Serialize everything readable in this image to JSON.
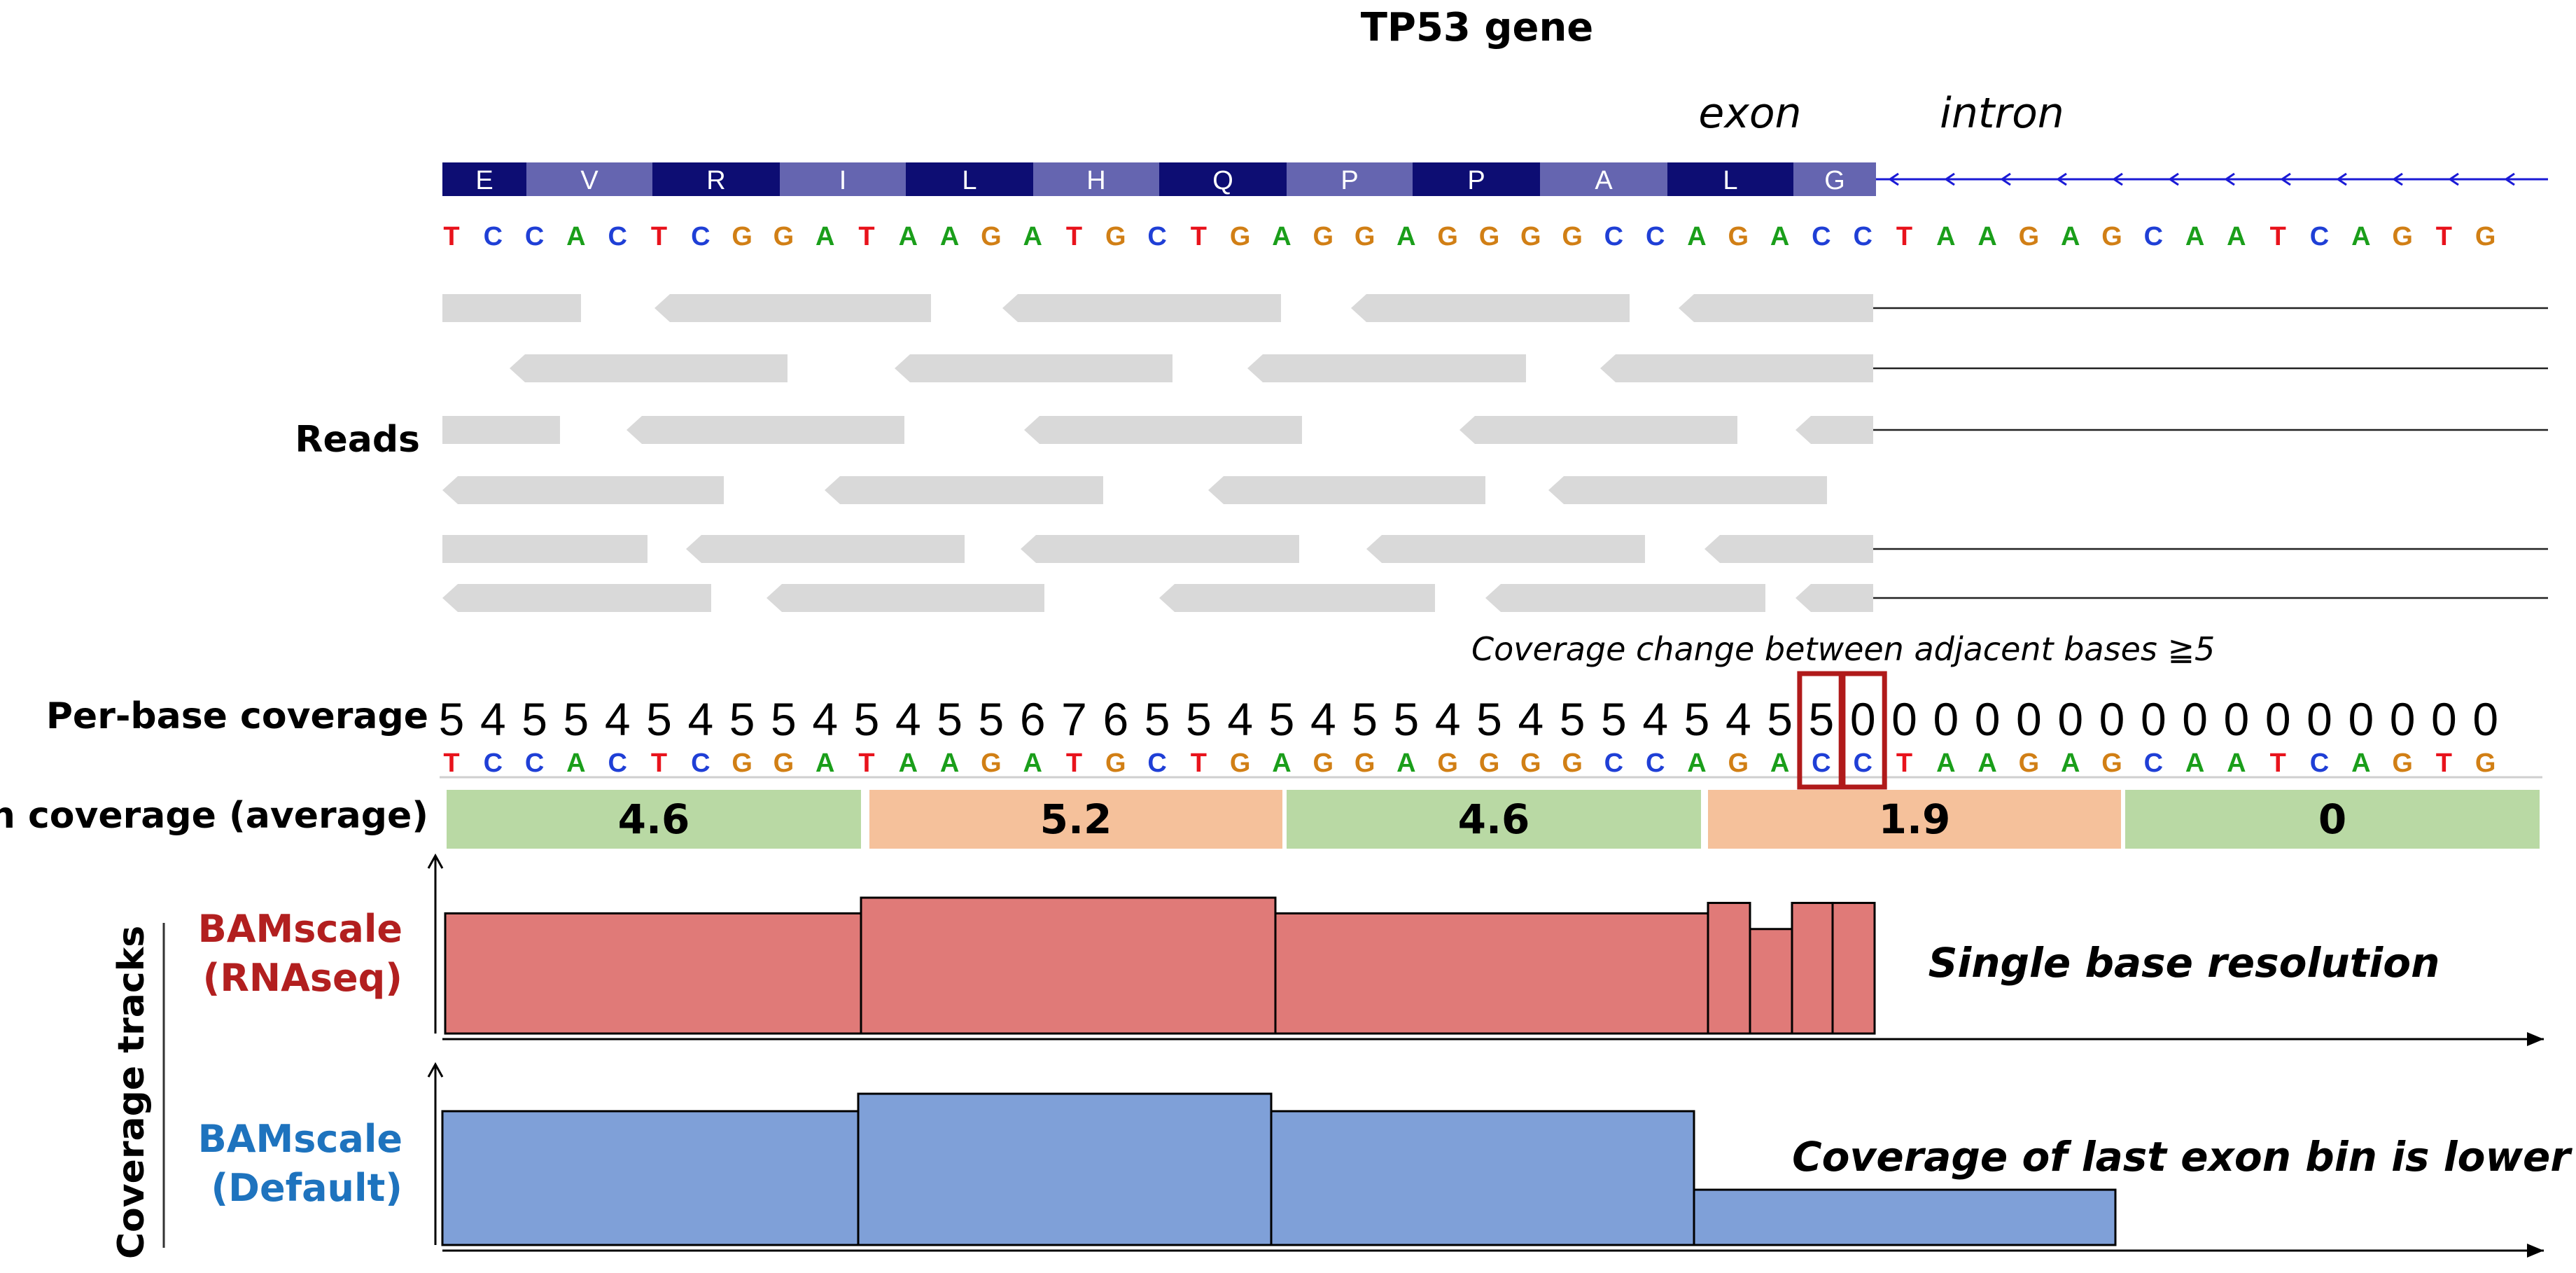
{
  "title": "TP53 gene",
  "region_labels": {
    "exon": "exon",
    "intron": "intron"
  },
  "amino_acids": [
    "E",
    "V",
    "R",
    "I",
    "L",
    "H",
    "Q",
    "P",
    "P",
    "A",
    "L",
    "G"
  ],
  "sequence": [
    "T",
    "C",
    "C",
    "A",
    "C",
    "T",
    "C",
    "G",
    "G",
    "A",
    "T",
    "A",
    "A",
    "G",
    "A",
    "T",
    "G",
    "C",
    "T",
    "G",
    "A",
    "G",
    "G",
    "A",
    "G",
    "G",
    "G",
    "G",
    "C",
    "C",
    "A",
    "G",
    "A",
    "C",
    "C",
    "T",
    "A",
    "A",
    "G",
    "A",
    "G",
    "C",
    "A",
    "A",
    "T",
    "C",
    "A",
    "G",
    "T",
    "G"
  ],
  "nucleotide_colors": {
    "A": "#1a9e1a",
    "C": "#1f3fd6",
    "G": "#d17f15",
    "T": "#e8131c"
  },
  "reads_label": "Reads",
  "per_base_label": "Per-base coverage",
  "per_base_coverage": [
    "5",
    "4",
    "5",
    "5",
    "4",
    "5",
    "4",
    "5",
    "5",
    "4",
    "5",
    "4",
    "5",
    "5",
    "6",
    "7",
    "6",
    "5",
    "5",
    "4",
    "5",
    "4",
    "5",
    "5",
    "4",
    "5",
    "4",
    "5",
    "5",
    "4",
    "5",
    "4",
    "5",
    "5",
    "0",
    "0",
    "0",
    "0",
    "0",
    "0",
    "0",
    "0",
    "0",
    "0",
    "0",
    "0",
    "0",
    "0",
    "0",
    "0"
  ],
  "coverage_note": "Coverage change between adjacent bases ≧5",
  "bin_label": "Bin coverage (average)",
  "bins": [
    {
      "value": "4.6",
      "color": "#b9d9a4"
    },
    {
      "value": "5.2",
      "color": "#f5c19b"
    },
    {
      "value": "4.6",
      "color": "#b9d9a4"
    },
    {
      "value": "1.9",
      "color": "#f5c19b"
    },
    {
      "value": "0",
      "color": "#b9d9a4"
    }
  ],
  "tracks_label": "Coverage tracks",
  "tracks": [
    {
      "name_line1": "BAMscale",
      "name_line2": "(RNAseq)",
      "color": "#e07a78",
      "label_color": "#b21f1f",
      "caption": "Single base resolution",
      "values": [
        4.6,
        5.2,
        4.6,
        5.0,
        4.0,
        5.0,
        5.0
      ]
    },
    {
      "name_line1": "BAMscale",
      "name_line2": "(Default)",
      "color": "#7fa0d8",
      "label_color": "#1e73be",
      "caption": "Coverage of last exon bin is lower",
      "values": [
        4.6,
        5.2,
        4.6,
        1.9
      ]
    }
  ],
  "colors": {
    "aa_dark": "#0d0d73",
    "aa_light": "#6565b0",
    "intron_line": "#1a1ad6",
    "read": "#d9d9d9",
    "highlight": "#b01a1a"
  }
}
